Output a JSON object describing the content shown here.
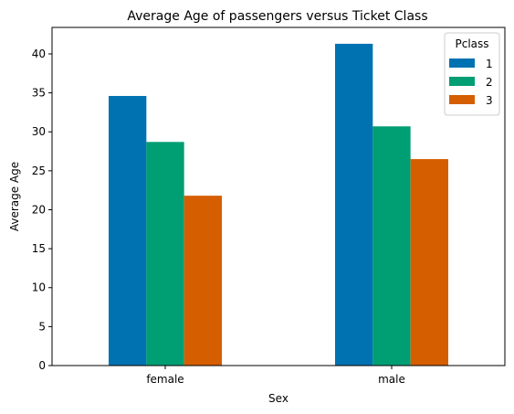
{
  "chart_data": {
    "type": "bar",
    "title": "Average Age of passengers versus Ticket Class",
    "xlabel": "Sex",
    "ylabel": "Average Age",
    "categories": [
      "female",
      "male"
    ],
    "series": [
      {
        "name": "1",
        "color": "#0072b2",
        "values": [
          34.6,
          41.3
        ]
      },
      {
        "name": "2",
        "color": "#009e73",
        "values": [
          28.7,
          30.7
        ]
      },
      {
        "name": "3",
        "color": "#d55e00",
        "values": [
          21.8,
          26.5
        ]
      }
    ],
    "ylim": [
      0,
      43.4
    ],
    "yticks": [
      0,
      5,
      10,
      15,
      20,
      25,
      30,
      35,
      40
    ],
    "grid": false,
    "legend": {
      "title": "Pclass",
      "placement": "top-right"
    }
  }
}
